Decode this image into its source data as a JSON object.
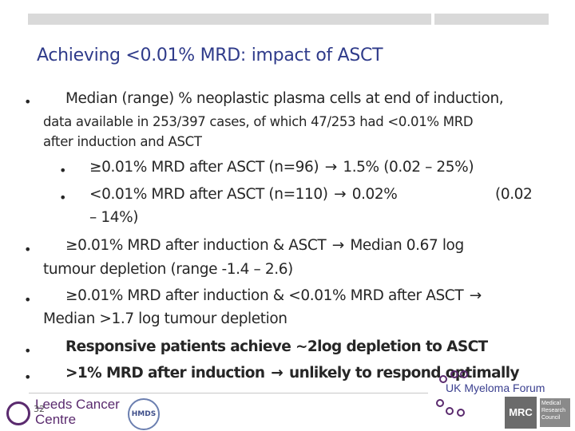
{
  "title": "Achieving <0.01% MRD: impact of ASCT",
  "bullet_char": "•",
  "arrow_char": "→",
  "lines": {
    "l1": "Median (range) % neoplastic plasma cells at end of induction,",
    "l2": "data available in 253/397 cases, of which 47/253 had <0.01% MRD",
    "l3": "after induction and ASCT",
    "l4a": "≥0.01% MRD after ASCT (n=96)",
    "l4b": "1.5%   (0.02 – 25%)",
    "l5a": "<0.01% MRD after ASCT (n=110)",
    "l5b": "0.02%",
    "l5c": "(0.02",
    "l6": "– 14%)",
    "l7a": "≥0.01% MRD after induction & ASCT",
    "l7b": "Median 0.67 log",
    "l8": "tumour depletion (range -1.4 – 2.6)",
    "l9a": "≥0.01% MRD after induction & <0.01% MRD after ASCT",
    "l10": "Median >1.7 log tumour depletion",
    "l11": "Responsive patients achieve ~2log depletion to ASCT",
    "l12a": ">1% MRD after induction",
    "l12b": "unlikely to respond optimally"
  },
  "footer": {
    "page_number": "32",
    "leeds_line1": "Leeds Cancer",
    "leeds_line2": "Centre",
    "hmds": "HMDS",
    "ukmf": "UK Myeloma Forum",
    "mrc": "MRC",
    "mrc_sub": "Medical Research Council"
  }
}
